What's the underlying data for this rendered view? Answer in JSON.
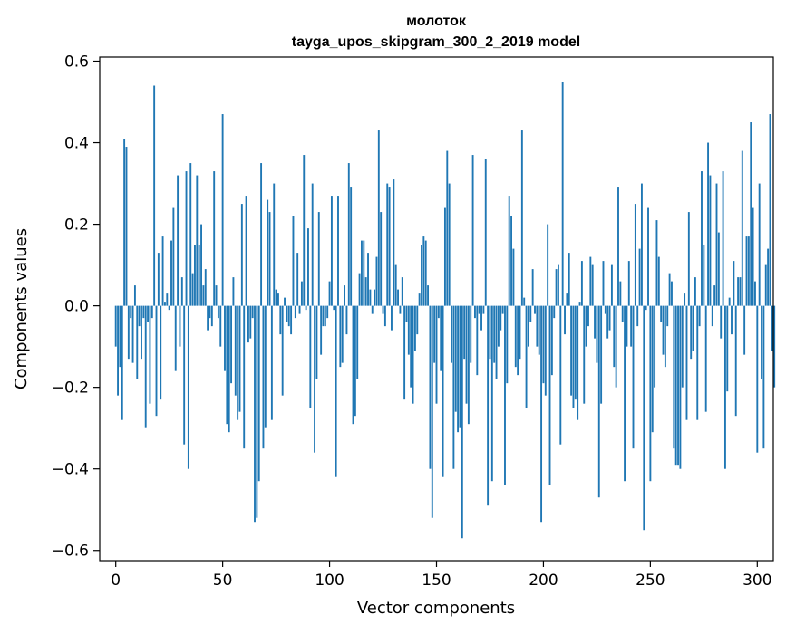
{
  "chart_data": {
    "type": "bar",
    "title_line1": "молоток",
    "title_line2": "tayga_upos_skipgram_300_2_2019 model",
    "xlabel": "Vector components",
    "ylabel": "Components values",
    "xlim": [
      -7.5,
      307.5
    ],
    "ylim": [
      -0.625,
      0.61
    ],
    "x_ticks": [
      0,
      50,
      100,
      150,
      200,
      250,
      300
    ],
    "x_tick_labels": [
      "0",
      "50",
      "100",
      "150",
      "200",
      "250",
      "300"
    ],
    "y_ticks": [
      -0.6,
      -0.4,
      -0.2,
      0.0,
      0.2,
      0.4,
      0.6
    ],
    "y_tick_labels": [
      "−0.6",
      "−0.4",
      "−0.2",
      "0.0",
      "0.2",
      "0.4",
      "0.6"
    ],
    "bar_color": "#1f77b4",
    "values": [
      -0.1,
      -0.22,
      -0.15,
      -0.28,
      0.41,
      0.39,
      -0.13,
      -0.03,
      -0.14,
      0.05,
      -0.18,
      -0.05,
      -0.13,
      -0.03,
      -0.3,
      -0.04,
      -0.24,
      -0.03,
      0.54,
      -0.27,
      0.13,
      -0.23,
      0.17,
      0.01,
      0.03,
      -0.01,
      0.16,
      0.24,
      -0.16,
      0.32,
      -0.1,
      0.07,
      -0.34,
      0.33,
      -0.4,
      0.35,
      0.08,
      0.15,
      0.32,
      0.15,
      0.2,
      0.05,
      0.09,
      -0.06,
      -0.03,
      -0.05,
      0.33,
      0.05,
      -0.03,
      -0.1,
      0.47,
      -0.16,
      -0.29,
      -0.31,
      -0.19,
      0.07,
      -0.22,
      -0.28,
      -0.26,
      0.25,
      -0.35,
      0.27,
      -0.09,
      -0.08,
      -0.03,
      -0.53,
      -0.52,
      -0.43,
      0.35,
      -0.35,
      -0.3,
      0.26,
      0.23,
      -0.28,
      0.3,
      0.04,
      0.03,
      -0.07,
      -0.22,
      0.02,
      -0.04,
      -0.05,
      -0.07,
      0.22,
      -0.03,
      0.13,
      -0.02,
      0.06,
      0.37,
      -0.01,
      0.19,
      -0.25,
      0.3,
      -0.36,
      -0.18,
      0.23,
      -0.12,
      -0.05,
      -0.05,
      -0.03,
      0.06,
      0.27,
      -0.01,
      -0.42,
      0.27,
      -0.15,
      -0.14,
      0.05,
      -0.07,
      0.35,
      0.29,
      -0.29,
      -0.27,
      -0.18,
      0.08,
      0.16,
      0.16,
      0.07,
      0.13,
      0.04,
      -0.02,
      0.04,
      0.12,
      0.43,
      0.23,
      -0.02,
      -0.05,
      0.3,
      0.29,
      -0.06,
      0.31,
      0.1,
      0.04,
      -0.02,
      0.07,
      -0.23,
      -0.04,
      -0.12,
      -0.2,
      -0.24,
      -0.11,
      -0.07,
      0.03,
      0.15,
      0.17,
      0.16,
      0.05,
      -0.4,
      -0.52,
      -0.14,
      -0.24,
      -0.03,
      -0.16,
      -0.42,
      0.24,
      0.38,
      0.3,
      -0.14,
      -0.4,
      -0.26,
      -0.31,
      -0.3,
      -0.57,
      -0.13,
      -0.24,
      -0.29,
      -0.14,
      0.37,
      -0.03,
      -0.17,
      -0.02,
      -0.06,
      -0.02,
      0.36,
      -0.49,
      -0.13,
      -0.43,
      -0.14,
      -0.18,
      -0.1,
      -0.06,
      -0.02,
      -0.44,
      -0.19,
      0.27,
      0.22,
      0.14,
      -0.15,
      -0.17,
      -0.13,
      0.43,
      0.02,
      -0.25,
      -0.1,
      -0.04,
      0.09,
      -0.02,
      -0.1,
      -0.12,
      -0.53,
      -0.19,
      -0.22,
      0.2,
      -0.44,
      -0.17,
      -0.03,
      0.09,
      0.1,
      -0.34,
      0.55,
      -0.07,
      0.03,
      0.13,
      -0.22,
      -0.25,
      -0.23,
      -0.28,
      0.01,
      0.11,
      -0.24,
      -0.1,
      -0.05,
      0.12,
      0.1,
      -0.08,
      -0.14,
      -0.47,
      -0.24,
      0.11,
      -0.02,
      -0.08,
      -0.06,
      0.1,
      -0.15,
      -0.2,
      0.29,
      0.06,
      -0.04,
      -0.43,
      -0.1,
      0.11,
      -0.1,
      -0.35,
      0.25,
      -0.05,
      0.14,
      0.3,
      -0.55,
      -0.01,
      0.24,
      -0.43,
      -0.31,
      -0.2,
      0.21,
      0.12,
      -0.04,
      -0.12,
      -0.15,
      -0.05,
      0.08,
      0.06,
      -0.35,
      -0.39,
      -0.39,
      -0.4,
      -0.2,
      0.03,
      -0.28,
      0.23,
      -0.13,
      -0.11,
      0.07,
      -0.28,
      -0.05,
      0.33,
      0.15,
      -0.26,
      0.4,
      0.32,
      -0.05,
      0.05,
      0.3,
      0.18,
      -0.08,
      0.33,
      -0.4,
      -0.21,
      0.02,
      -0.07,
      0.11,
      -0.27,
      0.07,
      0.07,
      0.38,
      -0.12,
      0.17,
      0.17,
      0.45,
      0.24,
      0.06,
      -0.36,
      0.3,
      -0.18,
      -0.35,
      0.1,
      0.14,
      0.47,
      -0.11,
      -0.2
    ]
  }
}
